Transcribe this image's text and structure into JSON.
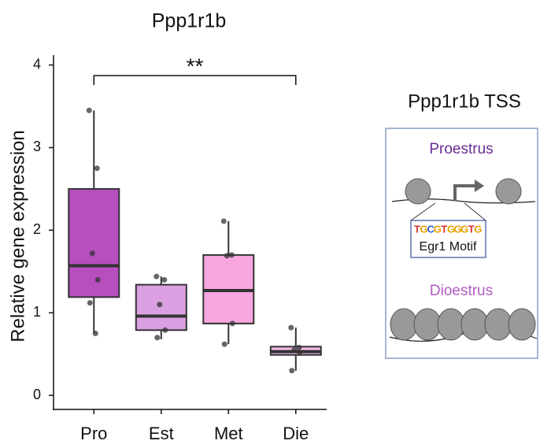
{
  "chart_data": {
    "type": "box",
    "title": "Ppp1r1b",
    "y_label": "Relative gene expression",
    "categories": [
      "Pro",
      "Est",
      "Met",
      "Die"
    ],
    "series": [
      {
        "color": "#b84fbf",
        "min": 0.75,
        "q1": 1.19,
        "median": 1.57,
        "q3": 2.5,
        "max": 3.45,
        "points": [
          3.45,
          2.75,
          1.72,
          1.4,
          1.12,
          0.75
        ]
      },
      {
        "color": "#dba0e2",
        "min": 0.68,
        "q1": 0.79,
        "median": 0.96,
        "q3": 1.34,
        "max": 1.44,
        "points": [
          1.44,
          1.4,
          1.1,
          0.79,
          0.7
        ]
      },
      {
        "color": "#f7a6df",
        "min": 0.62,
        "q1": 0.87,
        "median": 1.27,
        "q3": 1.7,
        "max": 2.11,
        "points": [
          2.11,
          1.7,
          1.69,
          0.87,
          0.62
        ]
      },
      {
        "color": "#f1b8e2",
        "min": 0.3,
        "q1": 0.49,
        "median": 0.53,
        "q3": 0.59,
        "max": 0.82,
        "points": [
          0.82,
          0.58,
          0.55,
          0.52,
          0.3
        ]
      }
    ],
    "ylim": [
      -0.17,
      4.12
    ],
    "yticks": [
      0,
      1,
      2,
      3,
      4
    ],
    "significance": {
      "from": 0,
      "to": 3,
      "label": "**"
    }
  },
  "diagram": {
    "title": "Ppp1r1b TSS",
    "state_top": "Proestrus",
    "state_bottom": "Dioestrus",
    "motif_label": "Egr1 Motif",
    "motif": [
      {
        "letter": "T",
        "color": "#d33"
      },
      {
        "letter": "G",
        "color": "#e8a000"
      },
      {
        "letter": "C",
        "color": "#2a5bd7"
      },
      {
        "letter": "G",
        "color": "#e8a000"
      },
      {
        "letter": "T",
        "color": "#d33"
      },
      {
        "letter": "G",
        "color": "#e8a000"
      },
      {
        "letter": "G",
        "color": "#e8a000"
      },
      {
        "letter": "G",
        "color": "#e8a000"
      },
      {
        "letter": "T",
        "color": "#d33"
      },
      {
        "letter": "G",
        "color": "#e8a000"
      }
    ]
  }
}
